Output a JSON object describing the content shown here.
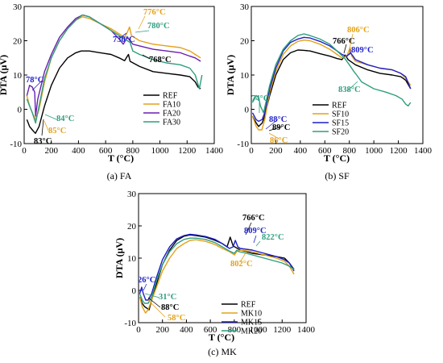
{
  "colors": {
    "REF": "#000000",
    "X10": "#E3A21A",
    "X15": "#1F1FC8",
    "X20": "#6A1FB0",
    "X30": "#2E9E7E"
  },
  "chart_data": [
    {
      "id": "FA",
      "type": "line",
      "caption": "(a) FA",
      "xlabel": "T  (°C)",
      "ylabel": "DTA  (μV)",
      "xlim": [
        0,
        1400
      ],
      "ylim": [
        -10,
        30
      ],
      "xticks": [
        0,
        200,
        400,
        600,
        800,
        1000,
        1200,
        1400
      ],
      "yticks": [
        -10,
        0,
        10,
        20,
        30
      ],
      "legend_position": "right-middle",
      "series": [
        {
          "name": "REF",
          "color": "#000000",
          "x": [
            20,
            40,
            60,
            83,
            110,
            150,
            200,
            260,
            320,
            380,
            420,
            480,
            560,
            640,
            700,
            740,
            760,
            768,
            780,
            850,
            950,
            1050,
            1150,
            1220,
            1260,
            1280,
            1300
          ],
          "y": [
            -3,
            -5,
            -6,
            -7,
            -5,
            1,
            7,
            12,
            15,
            16.5,
            17,
            17,
            16.5,
            16,
            15,
            14.2,
            15.5,
            16,
            14,
            12.5,
            11,
            10.5,
            10,
            9.5,
            8,
            6.5,
            6
          ]
        },
        {
          "name": "FA10",
          "color": "#E3A21A",
          "x": [
            20,
            40,
            60,
            85,
            110,
            150,
            200,
            260,
            320,
            380,
            430,
            480,
            560,
            640,
            700,
            740,
            760,
            776,
            790,
            850,
            950,
            1050,
            1150,
            1220,
            1260,
            1300
          ],
          "y": [
            4,
            1,
            -1,
            -3,
            0,
            8,
            15,
            20,
            23.5,
            26,
            27,
            26.5,
            25,
            23.5,
            22,
            21,
            22.5,
            24,
            21.5,
            20,
            19,
            18.5,
            18,
            17,
            16,
            15
          ]
        },
        {
          "name": "FA20",
          "color": "#6A1FB0",
          "x": [
            20,
            40,
            60,
            78,
            84,
            100,
            150,
            200,
            260,
            320,
            380,
            430,
            480,
            560,
            640,
            700,
            730,
            760,
            780,
            800,
            850,
            950,
            1050,
            1150,
            1220,
            1260,
            1300
          ],
          "y": [
            4,
            7,
            6.5,
            5,
            -2,
            3,
            11,
            16,
            21,
            24,
            26.5,
            27.5,
            27,
            25,
            23,
            20.5,
            19,
            21,
            20,
            19,
            18.5,
            17.5,
            17,
            16.5,
            15.5,
            15,
            14
          ]
        },
        {
          "name": "FA30",
          "color": "#2E9E7E",
          "x": [
            20,
            40,
            60,
            84,
            110,
            150,
            200,
            260,
            320,
            380,
            430,
            480,
            560,
            640,
            700,
            740,
            780,
            800,
            850,
            950,
            1050,
            1150,
            1220,
            1260,
            1290,
            1310
          ],
          "y": [
            3,
            1,
            -1,
            -4,
            1,
            9,
            15,
            20,
            23.5,
            26,
            27.5,
            27,
            25,
            23,
            21.5,
            20.5,
            19.5,
            17,
            16,
            14.5,
            13.5,
            13,
            12,
            10,
            6,
            10
          ]
        }
      ],
      "annotations": [
        {
          "text": "78°C",
          "color": "#1F1FC8",
          "x": 78,
          "y": 5
        },
        {
          "text": "84°C",
          "color": "#2E9E7E",
          "x": 84,
          "y": -4
        },
        {
          "text": "85°C",
          "color": "#E3A21A",
          "x": 85,
          "y": -3
        },
        {
          "text": "83°C",
          "color": "#000000",
          "x": 83,
          "y": -7
        },
        {
          "text": "776°C",
          "color": "#E3A21A",
          "x": 776,
          "y": 24
        },
        {
          "text": "730°C",
          "color": "#1F1FC8",
          "x": 730,
          "y": 19
        },
        {
          "text": "780°C",
          "color": "#2E9E7E",
          "x": 780,
          "y": 19.5
        },
        {
          "text": "768°C",
          "color": "#000000",
          "x": 768,
          "y": 16
        }
      ]
    },
    {
      "id": "SF",
      "type": "line",
      "caption": "(b) SF",
      "xlabel": "T  (°C)",
      "ylabel": "DTA  (μV)",
      "xlim": [
        0,
        1400
      ],
      "ylim": [
        -10,
        30
      ],
      "xticks": [
        0,
        200,
        400,
        600,
        800,
        1000,
        1200,
        1400
      ],
      "yticks": [
        -10,
        0,
        10,
        20,
        30
      ],
      "legend_position": "left-middle",
      "series": [
        {
          "name": "REF",
          "color": "#000000",
          "x": [
            10,
            40,
            60,
            89,
            110,
            150,
            200,
            260,
            320,
            380,
            430,
            480,
            560,
            640,
            700,
            740,
            766,
            790,
            850,
            950,
            1050,
            1150,
            1220,
            1260,
            1300
          ],
          "y": [
            -2,
            -4,
            -5,
            -4,
            -2,
            4,
            10,
            14.5,
            16.5,
            17.3,
            17.2,
            17,
            16.2,
            15.5,
            14.8,
            14.5,
            15.8,
            14.5,
            13,
            11.5,
            10.5,
            10,
            9.5,
            8.5,
            6
          ]
        },
        {
          "name": "SF10",
          "color": "#E3A21A",
          "x": [
            10,
            40,
            60,
            86,
            110,
            150,
            200,
            260,
            320,
            380,
            430,
            480,
            560,
            640,
            700,
            740,
            780,
            806,
            820,
            850,
            950,
            1050,
            1150,
            1220,
            1260,
            1300
          ],
          "y": [
            -2,
            -5,
            -6,
            -6,
            -3,
            5,
            11,
            16,
            18.5,
            19.8,
            20.2,
            20,
            19,
            17.5,
            16,
            15,
            15.5,
            18,
            15.5,
            14,
            13,
            12,
            11.5,
            10.5,
            9,
            7
          ]
        },
        {
          "name": "SF15",
          "color": "#1F1FC8",
          "x": [
            10,
            40,
            60,
            88,
            110,
            150,
            200,
            260,
            320,
            380,
            430,
            480,
            560,
            640,
            700,
            740,
            780,
            809,
            830,
            850,
            950,
            1050,
            1150,
            1220,
            1260,
            1300
          ],
          "y": [
            -1,
            -3,
            -3.5,
            -3,
            -1,
            6,
            12,
            17,
            19.5,
            20.5,
            21,
            20.8,
            19.8,
            18.5,
            17,
            16,
            15.5,
            16.5,
            15.5,
            14.5,
            13,
            12,
            11.5,
            10.5,
            9.5,
            6
          ]
        },
        {
          "name": "SF20",
          "color": "#2E9E7E",
          "x": [
            10,
            40,
            60,
            74,
            100,
            150,
            200,
            260,
            320,
            380,
            430,
            480,
            560,
            640,
            700,
            760,
            800,
            838,
            860,
            900,
            1000,
            1100,
            1180,
            1230,
            1260,
            1280,
            1300
          ],
          "y": [
            2,
            4,
            3.5,
            1,
            -1,
            7,
            13,
            17.5,
            20,
            21.5,
            22,
            21.5,
            20.5,
            19,
            17,
            15,
            13,
            11,
            10,
            8,
            6,
            5,
            4,
            3,
            1.5,
            1,
            2
          ]
        }
      ],
      "annotations": [
        {
          "text": "74°C",
          "color": "#2E9E7E",
          "x": 74,
          "y": 1
        },
        {
          "text": "88°C",
          "color": "#1F1FC8",
          "x": 88,
          "y": -3
        },
        {
          "text": "89°C",
          "color": "#000000",
          "x": 89,
          "y": -4
        },
        {
          "text": "86°C",
          "color": "#E3A21A",
          "x": 86,
          "y": -6
        },
        {
          "text": "766°C",
          "color": "#000000",
          "x": 766,
          "y": 15.8
        },
        {
          "text": "806°C",
          "color": "#E3A21A",
          "x": 806,
          "y": 18
        },
        {
          "text": "809°C",
          "color": "#1F1FC8",
          "x": 809,
          "y": 16.5
        },
        {
          "text": "838°C",
          "color": "#2E9E7E",
          "x": 838,
          "y": 11
        }
      ]
    },
    {
      "id": "MK",
      "type": "line",
      "caption": "(c) MK",
      "xlabel": "T  (°C)",
      "ylabel": "DTA  (μV)",
      "xlim": [
        0,
        1400
      ],
      "ylim": [
        -10,
        30
      ],
      "xticks": [
        0,
        200,
        400,
        600,
        800,
        1000,
        1200,
        1400
      ],
      "yticks": [
        -10,
        0,
        10,
        20,
        30
      ],
      "legend_position": "right-middle",
      "series": [
        {
          "name": "REF",
          "color": "#000000",
          "x": [
            10,
            30,
            50,
            88,
            110,
            150,
            200,
            260,
            320,
            380,
            430,
            480,
            560,
            640,
            700,
            740,
            766,
            790,
            850,
            950,
            1050,
            1150,
            1220,
            1260,
            1300
          ],
          "y": [
            -2,
            -4,
            -5,
            -6,
            -3,
            2,
            8,
            12.5,
            15.5,
            16.8,
            17.2,
            17,
            16.5,
            15.5,
            14.5,
            13.5,
            16.5,
            13.8,
            12.5,
            11.5,
            11,
            10.5,
            10,
            8.5,
            6.5
          ]
        },
        {
          "name": "MK10",
          "color": "#E3A21A",
          "x": [
            10,
            30,
            58,
            80,
            110,
            150,
            200,
            260,
            320,
            380,
            430,
            480,
            560,
            640,
            700,
            760,
            802,
            820,
            850,
            950,
            1050,
            1150,
            1220,
            1260,
            1300
          ],
          "y": [
            -2,
            -5,
            -7,
            -6,
            -3,
            1,
            6,
            10,
            13,
            14.5,
            15.5,
            15.7,
            15.2,
            14.2,
            13,
            12,
            11,
            12,
            12.5,
            12,
            11,
            10,
            9,
            7.5,
            5
          ]
        },
        {
          "name": "MK15",
          "color": "#1F1FC8",
          "x": [
            10,
            26,
            40,
            60,
            80,
            110,
            150,
            200,
            260,
            320,
            380,
            430,
            480,
            560,
            640,
            700,
            760,
            790,
            809,
            830,
            850,
            950,
            1050,
            1150,
            1220,
            1260,
            1300
          ],
          "y": [
            -1,
            1,
            -1,
            -3,
            -3,
            -1,
            4,
            9.5,
            13.5,
            16,
            17,
            17.4,
            17.2,
            16.7,
            15.8,
            14.5,
            13,
            13.5,
            15.5,
            13.5,
            13,
            12.5,
            11.5,
            10.5,
            9.5,
            8.5,
            6
          ]
        },
        {
          "name": "MK20",
          "color": "#2E9E7E",
          "x": [
            10,
            31,
            50,
            80,
            110,
            150,
            200,
            260,
            320,
            380,
            430,
            480,
            560,
            640,
            700,
            760,
            800,
            822,
            840,
            900,
            1000,
            1100,
            1200,
            1260,
            1300
          ],
          "y": [
            -1,
            -3,
            -4,
            -4,
            -2,
            3,
            8,
            12,
            14.5,
            15.8,
            16.2,
            16.2,
            15.8,
            14.8,
            13.5,
            12.2,
            11.5,
            12.5,
            12,
            11.5,
            10.5,
            9.5,
            8.5,
            7.5,
            6.5
          ]
        }
      ],
      "annotations": [
        {
          "text": "26°C",
          "color": "#1F1FC8",
          "x": 26,
          "y": 1
        },
        {
          "text": "31°C",
          "color": "#2E9E7E",
          "x": 31,
          "y": -3
        },
        {
          "text": "88°C",
          "color": "#000000",
          "x": 88,
          "y": -6
        },
        {
          "text": "58°C",
          "color": "#E3A21A",
          "x": 58,
          "y": -7
        },
        {
          "text": "766°C",
          "color": "#000000",
          "x": 766,
          "y": 16.5
        },
        {
          "text": "809°C",
          "color": "#1F1FC8",
          "x": 809,
          "y": 15.5
        },
        {
          "text": "822°C",
          "color": "#2E9E7E",
          "x": 822,
          "y": 12.5
        },
        {
          "text": "802°C",
          "color": "#E3A21A",
          "x": 802,
          "y": 11
        }
      ]
    }
  ]
}
